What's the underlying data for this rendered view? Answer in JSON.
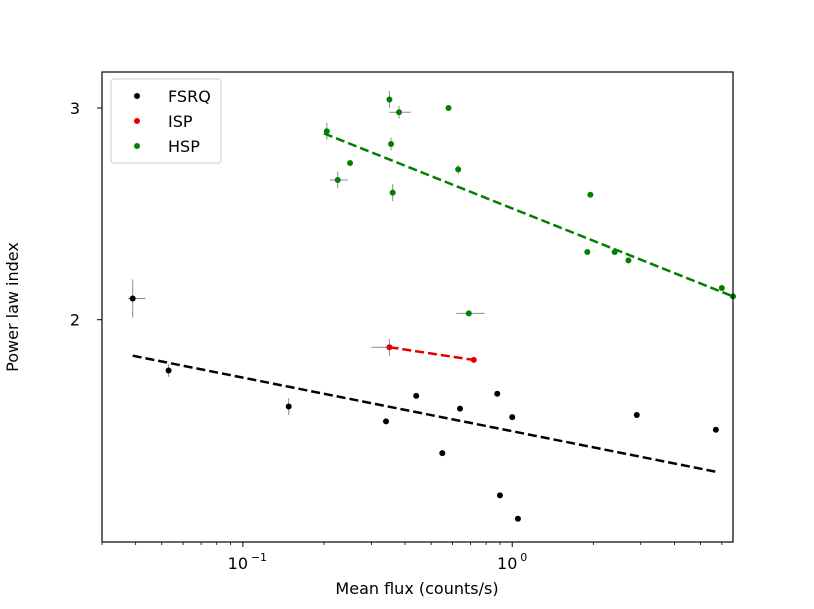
{
  "chart_data": {
    "type": "scatter",
    "title": "",
    "xlabel": "Mean flux (counts/s)",
    "ylabel": "Power law index",
    "x_scale": "log",
    "xlim": [
      0.03,
      6.6
    ],
    "ylim": [
      0.95,
      3.17
    ],
    "x_ticks": [
      {
        "value": 0.1,
        "label": "10",
        "exp": "−1"
      },
      {
        "value": 1.0,
        "label": "10",
        "exp": "0"
      }
    ],
    "y_ticks": [
      {
        "value": 2,
        "label": "2"
      },
      {
        "value": 3,
        "label": "3"
      }
    ],
    "grid": false,
    "legend_position": "upper left",
    "series": [
      {
        "name": "FSRQ",
        "color": "#000000",
        "points": [
          {
            "x": 0.039,
            "y": 2.1,
            "xerr": [
              0.0015,
              0.0045
            ],
            "yerr": 0.09
          },
          {
            "x": 0.053,
            "y": 1.76,
            "yerr": 0.03
          },
          {
            "x": 0.148,
            "y": 1.59,
            "yerr": 0.04
          },
          {
            "x": 0.34,
            "y": 1.52
          },
          {
            "x": 0.44,
            "y": 1.64
          },
          {
            "x": 0.55,
            "y": 1.37
          },
          {
            "x": 0.64,
            "y": 1.58
          },
          {
            "x": 0.88,
            "y": 1.65
          },
          {
            "x": 0.9,
            "y": 1.17
          },
          {
            "x": 1.0,
            "y": 1.54
          },
          {
            "x": 1.05,
            "y": 1.06
          },
          {
            "x": 2.9,
            "y": 1.55
          },
          {
            "x": 5.7,
            "y": 1.48
          }
        ],
        "fit": {
          "x": [
            0.039,
            5.8
          ],
          "y": [
            1.83,
            1.28
          ]
        }
      },
      {
        "name": "ISP",
        "color": "#e50000",
        "points": [
          {
            "x": 0.35,
            "y": 1.87,
            "xerr": [
              0.05,
              0.03
            ],
            "yerr": 0.04
          },
          {
            "x": 0.72,
            "y": 1.81
          }
        ],
        "fit": {
          "x": [
            0.35,
            0.72
          ],
          "y": [
            1.87,
            1.81
          ]
        }
      },
      {
        "name": "HSP",
        "color": "#008000",
        "points": [
          {
            "x": 0.205,
            "y": 2.89,
            "yerr": 0.04
          },
          {
            "x": 0.225,
            "y": 2.66,
            "xerr": [
              0.015,
              0.02
            ],
            "yerr": 0.04
          },
          {
            "x": 0.25,
            "y": 2.74
          },
          {
            "x": 0.35,
            "y": 3.04,
            "yerr": 0.04
          },
          {
            "x": 0.355,
            "y": 2.83,
            "yerr": 0.03
          },
          {
            "x": 0.36,
            "y": 2.6,
            "yerr": 0.04
          },
          {
            "x": 0.38,
            "y": 2.98,
            "xerr": [
              0.03,
              0.04
            ],
            "yerr": 0.03
          },
          {
            "x": 0.58,
            "y": 3.0
          },
          {
            "x": 0.63,
            "y": 2.71,
            "yerr": 0.02
          },
          {
            "x": 0.69,
            "y": 2.03,
            "xerr": [
              0.07,
              0.1
            ]
          },
          {
            "x": 1.9,
            "y": 2.32
          },
          {
            "x": 1.95,
            "y": 2.59
          },
          {
            "x": 2.4,
            "y": 2.32
          },
          {
            "x": 2.7,
            "y": 2.28
          },
          {
            "x": 6.0,
            "y": 2.15
          },
          {
            "x": 6.6,
            "y": 2.11
          }
        ],
        "fit": {
          "x": [
            0.2,
            6.6
          ],
          "y": [
            2.88,
            2.11
          ]
        }
      }
    ]
  }
}
